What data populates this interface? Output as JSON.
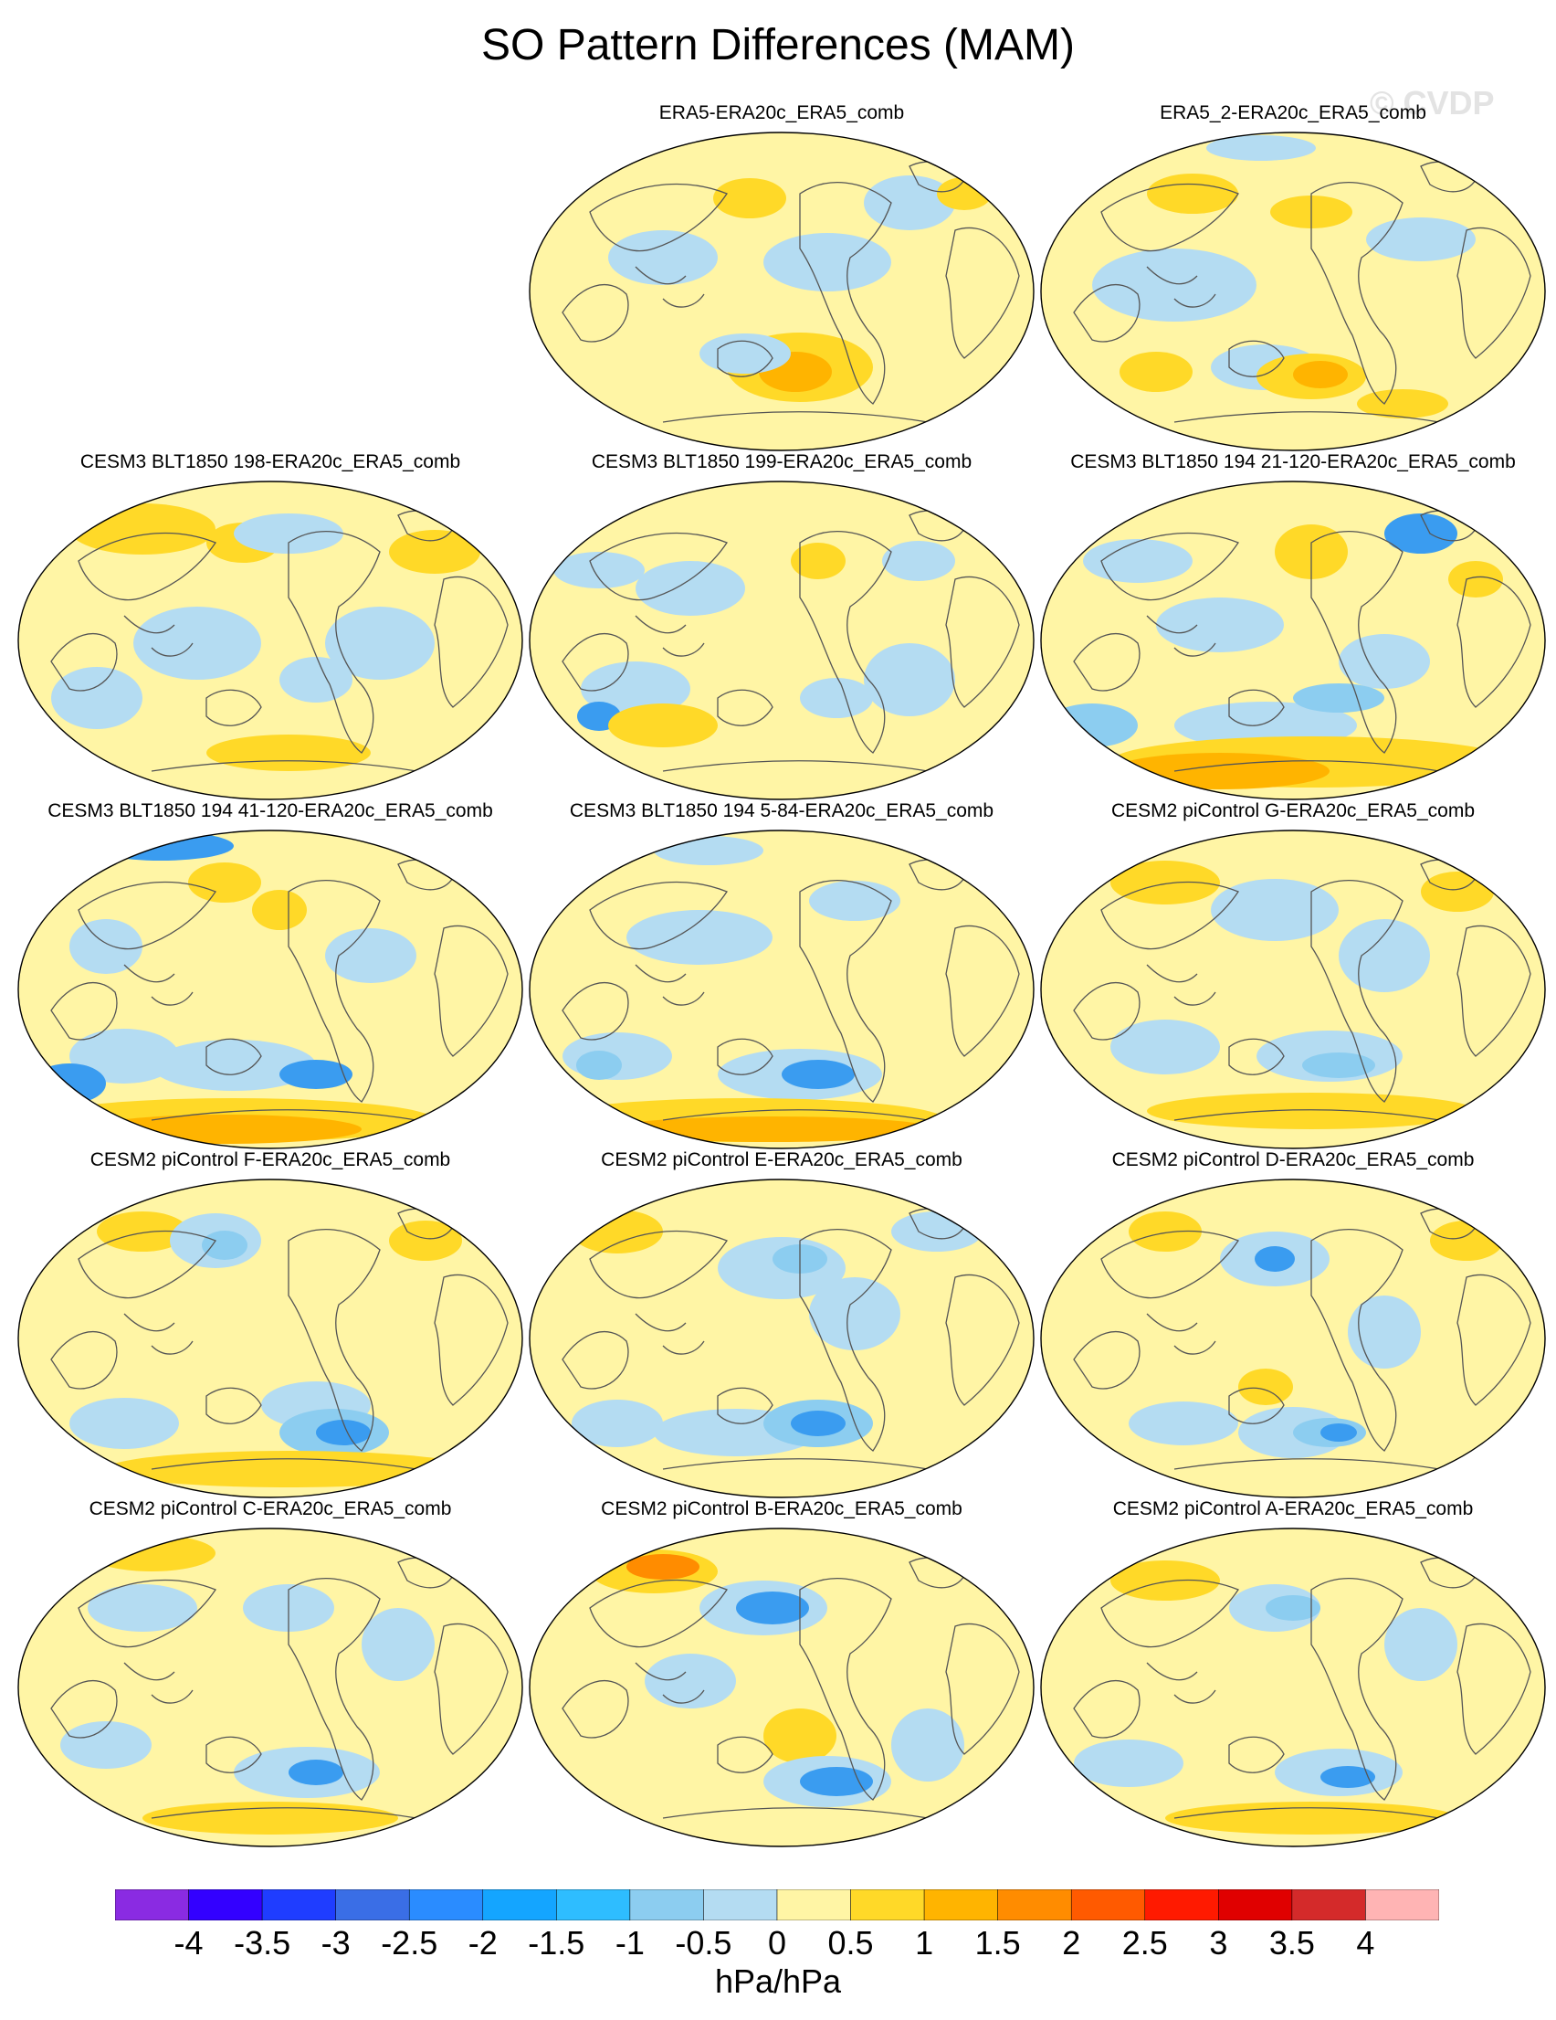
{
  "figure": {
    "title": "SO Pattern Differences (MAM)",
    "watermark": "© CVDP",
    "units": "hPa/hPa"
  },
  "palette": {
    "ocean_light_blue": "#b4dcf2",
    "pale_yellow": "#fff5a5",
    "orange": "#ffb400",
    "land_outline": "#555555"
  },
  "panels": [
    {
      "title": "ERA5-ERA20c_ERA5_comb"
    },
    {
      "title": "ERA5_2-ERA20c_ERA5_comb"
    },
    {
      "title": "CESM3 BLT1850 198-ERA20c_ERA5_comb"
    },
    {
      "title": "CESM3 BLT1850 199-ERA20c_ERA5_comb"
    },
    {
      "title": "CESM3 BLT1850 194 21-120-ERA20c_ERA5_comb"
    },
    {
      "title": "CESM3 BLT1850 194 41-120-ERA20c_ERA5_comb"
    },
    {
      "title": "CESM3 BLT1850 194 5-84-ERA20c_ERA5_comb"
    },
    {
      "title": "CESM2 piControl G-ERA20c_ERA5_comb"
    },
    {
      "title": "CESM2 piControl F-ERA20c_ERA5_comb"
    },
    {
      "title": "CESM2 piControl E-ERA20c_ERA5_comb"
    },
    {
      "title": "CESM2 piControl D-ERA20c_ERA5_comb"
    },
    {
      "title": "CESM2 piControl C-ERA20c_ERA5_comb"
    },
    {
      "title": "CESM2 piControl B-ERA20c_ERA5_comb"
    },
    {
      "title": "CESM2 piControl A-ERA20c_ERA5_comb"
    }
  ],
  "colorbar": {
    "colors": [
      "#8a2be2",
      "#3300ff",
      "#1f3dff",
      "#3a6ee6",
      "#2a8cff",
      "#14a5ff",
      "#2ebdff",
      "#8ccdf0",
      "#b4dcf2",
      "#fff5a5",
      "#ffd928",
      "#ffb400",
      "#ff8c00",
      "#ff5a00",
      "#ff1a00",
      "#e00000",
      "#d42a2a",
      "#ffb4b4"
    ],
    "ticks": [
      "-4",
      "-3.5",
      "-3",
      "-2.5",
      "-2",
      "-1.5",
      "-1",
      "-0.5",
      "0",
      "0.5",
      "1",
      "1.5",
      "2",
      "2.5",
      "3",
      "3.5",
      "4"
    ]
  }
}
